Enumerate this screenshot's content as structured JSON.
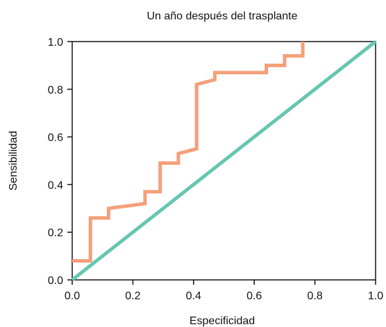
{
  "chart_data": {
    "type": "line",
    "title": "Un año después del trasplante",
    "xlabel": "Especificidad",
    "ylabel": "Sensibilidad",
    "xlim": [
      0.0,
      1.0
    ],
    "ylim": [
      0.0,
      1.0
    ],
    "xticks": [
      "0.0",
      "0.2",
      "0.4",
      "0.6",
      "0.8",
      "1.0"
    ],
    "yticks": [
      "0.0",
      "0.2",
      "0.4",
      "0.6",
      "0.8",
      "1.0"
    ],
    "grid": false,
    "legend": "none",
    "series": [
      {
        "color": "#f4a07a",
        "step": true,
        "points": [
          [
            0.0,
            0.08
          ],
          [
            0.06,
            0.08
          ],
          [
            0.06,
            0.26
          ],
          [
            0.12,
            0.26
          ],
          [
            0.12,
            0.3
          ],
          [
            0.24,
            0.32
          ],
          [
            0.24,
            0.37
          ],
          [
            0.29,
            0.37
          ],
          [
            0.29,
            0.49
          ],
          [
            0.35,
            0.49
          ],
          [
            0.35,
            0.53
          ],
          [
            0.41,
            0.55
          ],
          [
            0.41,
            0.82
          ],
          [
            0.47,
            0.84
          ],
          [
            0.47,
            0.87
          ],
          [
            0.64,
            0.87
          ],
          [
            0.64,
            0.9
          ],
          [
            0.7,
            0.9
          ],
          [
            0.7,
            0.94
          ],
          [
            0.76,
            0.94
          ],
          [
            0.76,
            1.0
          ]
        ]
      },
      {
        "color": "#66c6b0",
        "step": false,
        "points": [
          [
            0.0,
            0.0
          ],
          [
            1.0,
            1.0
          ]
        ]
      }
    ]
  }
}
